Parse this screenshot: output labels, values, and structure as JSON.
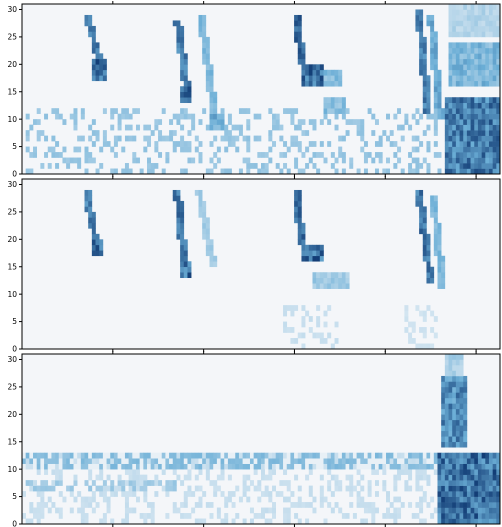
{
  "colors": {
    "background": "#f4f6f9",
    "low": "#f4f6f9",
    "mid": "#6baed6",
    "high": "#08306b",
    "frame": "#000000"
  },
  "chart_data": [
    {
      "type": "heatmap",
      "title": "",
      "xlabel": "",
      "ylabel": "",
      "ylim": [
        0,
        31
      ],
      "yticks": [
        0,
        5,
        10,
        15,
        20,
        25,
        30
      ],
      "ytick_labels": [
        "0",
        "5",
        "10",
        "15",
        "20",
        "25",
        "30"
      ],
      "xlim": [
        0,
        100
      ],
      "xticks": [
        19,
        38,
        57,
        76,
        95
      ],
      "xtick_labels": [],
      "grid": false,
      "colorscale": "Blues",
      "value_range": [
        0,
        1
      ],
      "features": [
        {
          "kind": "sweep",
          "x0": 13.5,
          "x1": 16.5,
          "y0": 29,
          "y1": 20,
          "v": 0.8
        },
        {
          "kind": "blob",
          "x0": 14.5,
          "x1": 17.5,
          "y0": 17.5,
          "y1": 20.5,
          "v": 1.0
        },
        {
          "kind": "sweep",
          "x0": 32.5,
          "x1": 34.5,
          "y0": 28,
          "y1": 15,
          "v": 0.8
        },
        {
          "kind": "blob",
          "x0": 32.8,
          "x1": 35.2,
          "y0": 13.5,
          "y1": 15.5,
          "v": 0.95
        },
        {
          "kind": "sweep",
          "x0": 37.5,
          "x1": 40.5,
          "y0": 29,
          "y1": 9.5,
          "v": 0.5
        },
        {
          "kind": "blob",
          "x0": 39.5,
          "x1": 42.5,
          "y0": 8.5,
          "y1": 10.5,
          "v": 0.6
        },
        {
          "kind": "sweep",
          "x0": 57.5,
          "x1": 58.5,
          "y0": 29,
          "y1": 20,
          "v": 0.9
        },
        {
          "kind": "blob",
          "x0": 58.2,
          "x1": 63.2,
          "y0": 16.5,
          "y1": 19.5,
          "v": 1.0
        },
        {
          "kind": "blob",
          "x0": 63,
          "x1": 67,
          "y0": 16.5,
          "y1": 18.5,
          "v": 0.55
        },
        {
          "kind": "blob",
          "x0": 63,
          "x1": 67.5,
          "y0": 11.5,
          "y1": 13.5,
          "v": 0.5
        },
        {
          "kind": "sweep",
          "x0": 83,
          "x1": 85,
          "y0": 30,
          "y1": 11,
          "v": 0.8
        },
        {
          "kind": "sweep",
          "x0": 85.5,
          "x1": 87.5,
          "y0": 29,
          "y1": 10,
          "v": 0.6
        },
        {
          "kind": "blob",
          "x0": 88.5,
          "x1": 100,
          "y0": 0,
          "y1": 14,
          "v": 0.9
        },
        {
          "kind": "blob",
          "x0": 89,
          "x1": 100,
          "y0": 16,
          "y1": 24,
          "v": 0.55
        },
        {
          "kind": "blob",
          "x0": 89,
          "x1": 100,
          "y0": 25,
          "y1": 31,
          "v": 0.3
        },
        {
          "kind": "noise",
          "x0": 1,
          "x1": 88,
          "y0": 0,
          "y1": 12,
          "v": 0.25
        }
      ]
    },
    {
      "type": "heatmap",
      "title": "",
      "xlabel": "",
      "ylabel": "",
      "ylim": [
        0,
        31
      ],
      "yticks": [
        0,
        5,
        10,
        15,
        20,
        25,
        30
      ],
      "ytick_labels": [
        "0",
        "5",
        "10",
        "15",
        "20",
        "25",
        "30"
      ],
      "xlim": [
        0,
        100
      ],
      "xticks": [
        19,
        38,
        57,
        76,
        95
      ],
      "xtick_labels": [],
      "grid": false,
      "colorscale": "Blues",
      "value_range": [
        0,
        1
      ],
      "features": [
        {
          "kind": "sweep",
          "x0": 13.5,
          "x1": 15.5,
          "y0": 29,
          "y1": 19,
          "v": 0.8
        },
        {
          "kind": "blob",
          "x0": 14.5,
          "x1": 17,
          "y0": 17,
          "y1": 19.5,
          "v": 1.0
        },
        {
          "kind": "sweep",
          "x0": 32.5,
          "x1": 34,
          "y0": 29,
          "y1": 15,
          "v": 0.85
        },
        {
          "kind": "blob",
          "x0": 33,
          "x1": 35.5,
          "y0": 13.5,
          "y1": 15.5,
          "v": 0.95
        },
        {
          "kind": "sweep",
          "x0": 37,
          "x1": 40,
          "y0": 29,
          "y1": 15,
          "v": 0.35
        },
        {
          "kind": "sweep",
          "x0": 57.5,
          "x1": 58.5,
          "y0": 29,
          "y1": 19,
          "v": 0.9
        },
        {
          "kind": "blob",
          "x0": 58.3,
          "x1": 63,
          "y0": 16.5,
          "y1": 18.5,
          "v": 1.0
        },
        {
          "kind": "blob",
          "x0": 61,
          "x1": 68.5,
          "y0": 11.5,
          "y1": 13.5,
          "v": 0.4
        },
        {
          "kind": "sweep",
          "x0": 83,
          "x1": 85.5,
          "y0": 29,
          "y1": 12,
          "v": 0.85
        },
        {
          "kind": "sweep",
          "x0": 86,
          "x1": 88,
          "y0": 28,
          "y1": 11,
          "v": 0.5
        },
        {
          "kind": "noise",
          "x0": 55,
          "x1": 66,
          "y0": 0,
          "y1": 8,
          "v": 0.12
        },
        {
          "kind": "noise",
          "x0": 80,
          "x1": 88,
          "y0": 0,
          "y1": 8,
          "v": 0.1
        }
      ]
    },
    {
      "type": "heatmap",
      "title": "",
      "xlabel": "",
      "ylabel": "",
      "ylim": [
        0,
        31
      ],
      "yticks": [
        0,
        5,
        10,
        15,
        20,
        25,
        30
      ],
      "ytick_labels": [
        "0",
        "5",
        "10",
        "15",
        "20",
        "25",
        "30"
      ],
      "xlim": [
        0,
        100
      ],
      "xticks": [
        19,
        38,
        57,
        76,
        95
      ],
      "xtick_labels": [],
      "grid": false,
      "colorscale": "Blues",
      "value_range": [
        0,
        1
      ],
      "features": [
        {
          "kind": "band",
          "x0": 0,
          "x1": 88,
          "y0": 10.5,
          "y1": 12.5,
          "v": 0.45
        },
        {
          "kind": "band",
          "x0": 0,
          "x1": 32,
          "y0": 6,
          "y1": 8,
          "v": 0.35
        },
        {
          "kind": "blob",
          "x0": 87,
          "x1": 100,
          "y0": 0,
          "y1": 13,
          "v": 0.95
        },
        {
          "kind": "blob",
          "x0": 88,
          "x1": 93,
          "y0": 14,
          "y1": 27,
          "v": 0.8
        },
        {
          "kind": "blob",
          "x0": 88.5,
          "x1": 92,
          "y0": 27,
          "y1": 31,
          "v": 0.35
        },
        {
          "kind": "blob",
          "x0": 93,
          "x1": 100,
          "y0": 5,
          "y1": 9,
          "v": 0.85
        },
        {
          "kind": "noise",
          "x0": 0,
          "x1": 88,
          "y0": 0,
          "y1": 13,
          "v": 0.12
        }
      ]
    }
  ]
}
